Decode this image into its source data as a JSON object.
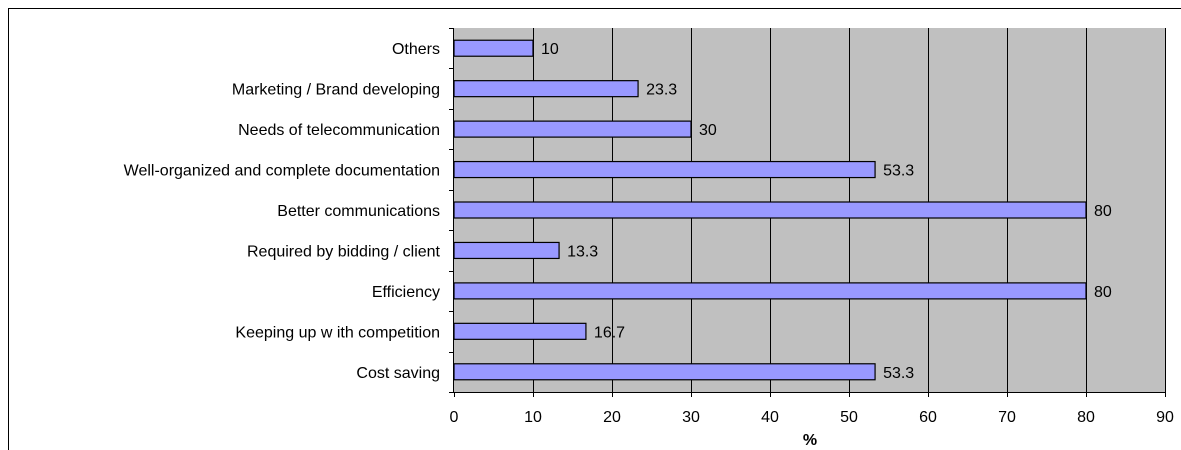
{
  "chart_data": {
    "type": "bar",
    "orientation": "horizontal",
    "title": "",
    "xlabel": "%",
    "ylabel": "",
    "xlim": [
      0,
      90
    ],
    "x_ticks": [
      0,
      10,
      20,
      30,
      40,
      50,
      60,
      70,
      80,
      90
    ],
    "grid": "vertical",
    "categories": [
      "Others",
      "Marketing / Brand developing",
      "Needs of telecommunication",
      "Well-organized and complete documentation",
      "Better communications",
      "Required by bidding / client",
      "Efficiency",
      "Keeping up w ith competition",
      "Cost saving"
    ],
    "values": [
      10,
      23.3,
      30,
      53.3,
      80,
      13.3,
      80,
      16.7,
      53.3
    ],
    "colors": {
      "bar_fill": "#9999ff",
      "bar_stroke": "#000000",
      "plot_background": "#c0c0c0",
      "gridline": "#000000"
    }
  }
}
